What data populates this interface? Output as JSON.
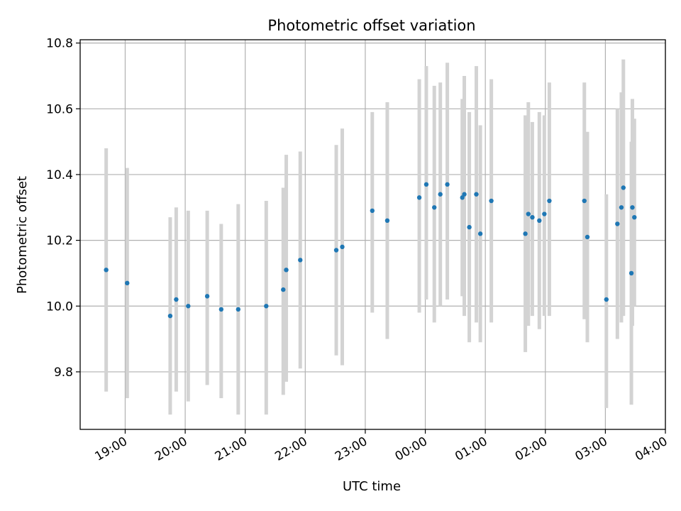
{
  "chart_data": {
    "type": "scatter",
    "title": "Photometric offset variation",
    "xlabel": "UTC time",
    "ylabel": "Photometric offset",
    "x_axis_kind": "time",
    "xlim": [
      "18:15",
      "04:00"
    ],
    "ylim": [
      9.625,
      10.81
    ],
    "grid": true,
    "x_ticks": [
      "19:00",
      "20:00",
      "21:00",
      "22:00",
      "23:00",
      "00:00",
      "01:00",
      "02:00",
      "03:00",
      "04:00"
    ],
    "y_ticks": [
      9.8,
      10.0,
      10.2,
      10.4,
      10.6,
      10.8
    ],
    "y_tick_labels": [
      "9.8",
      "10.0",
      "10.2",
      "10.4",
      "10.6",
      "10.8"
    ],
    "colors": {
      "points": "#1f77b4",
      "errorbars": "#d3d3d3",
      "grid": "#b0b0b0"
    },
    "series": [
      {
        "x": [
          "18:41",
          "19:02",
          "19:45",
          "19:51",
          "20:03",
          "20:22",
          "20:36",
          "20:53",
          "21:21",
          "21:38",
          "21:41",
          "21:55",
          "22:31",
          "22:37",
          "23:07",
          "23:22",
          "23:54",
          "24:01",
          "24:09",
          "24:15",
          "24:22",
          "24:37",
          "24:39",
          "24:44",
          "24:51",
          "24:55",
          "25:06",
          "25:40",
          "25:43",
          "25:47",
          "25:54",
          "25:59",
          "26:04",
          "26:39",
          "26:42",
          "27:01",
          "27:12",
          "27:16",
          "27:18",
          "27:26",
          "27:27",
          "27:29"
        ],
        "y": [
          10.11,
          10.07,
          9.97,
          10.02,
          10.0,
          10.03,
          9.99,
          9.99,
          10.0,
          10.05,
          10.11,
          10.14,
          10.17,
          10.18,
          10.29,
          10.26,
          10.33,
          10.37,
          10.3,
          10.34,
          10.37,
          10.33,
          10.34,
          10.24,
          10.34,
          10.22,
          10.32,
          10.22,
          10.28,
          10.27,
          10.26,
          10.28,
          10.32,
          10.32,
          10.21,
          10.02,
          10.25,
          10.3,
          10.36,
          10.1,
          10.3,
          10.27
        ],
        "y_low": [
          9.74,
          9.72,
          9.67,
          9.74,
          9.71,
          9.76,
          9.72,
          9.67,
          9.67,
          9.73,
          9.77,
          9.81,
          9.85,
          9.82,
          9.98,
          9.9,
          9.98,
          10.02,
          9.95,
          10.0,
          10.02,
          10.03,
          9.97,
          9.89,
          9.95,
          9.89,
          9.95,
          9.86,
          9.94,
          9.97,
          9.93,
          9.97,
          9.97,
          9.96,
          9.89,
          9.69,
          9.9,
          9.95,
          9.97,
          9.7,
          9.94,
          10.0
        ],
        "y_high": [
          10.48,
          10.42,
          10.27,
          10.3,
          10.29,
          10.29,
          10.25,
          10.31,
          10.32,
          10.36,
          10.46,
          10.47,
          10.49,
          10.54,
          10.59,
          10.62,
          10.69,
          10.73,
          10.67,
          10.68,
          10.74,
          10.63,
          10.7,
          10.59,
          10.73,
          10.55,
          10.69,
          10.58,
          10.62,
          10.56,
          10.59,
          10.58,
          10.68,
          10.68,
          10.53,
          10.34,
          10.6,
          10.65,
          10.75,
          10.5,
          10.63,
          10.57
        ]
      }
    ]
  }
}
